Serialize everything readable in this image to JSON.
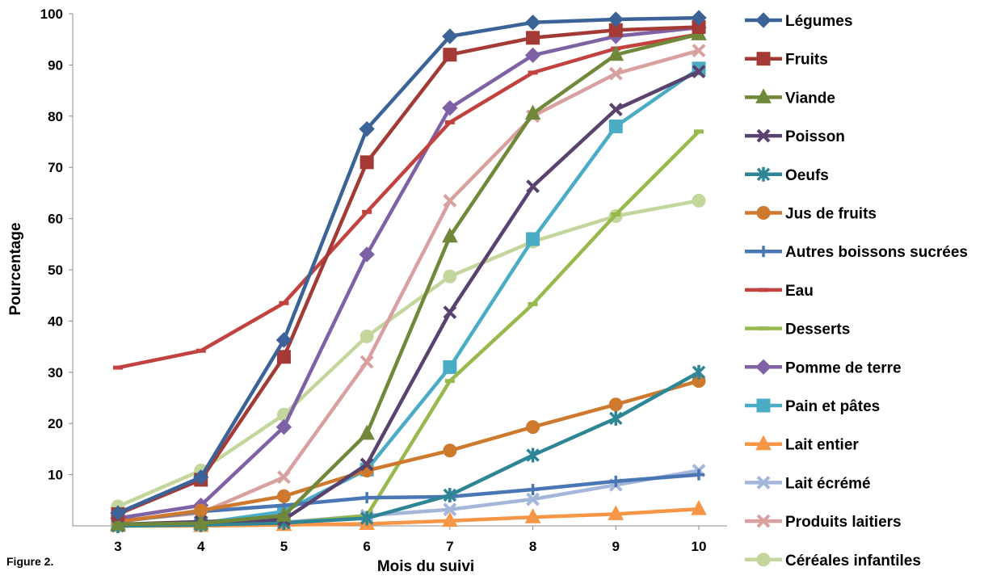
{
  "figure_label": "Figure 2.",
  "chart_data": {
    "type": "line",
    "xlabel": "Mois du suivi",
    "ylabel": "Pourcentage",
    "x": [
      3,
      4,
      5,
      6,
      7,
      8,
      9,
      10
    ],
    "ylim": [
      0,
      100
    ],
    "yticks": [
      10,
      20,
      30,
      40,
      50,
      60,
      70,
      80,
      90,
      100
    ],
    "grid": false,
    "legend_position": "right",
    "series": [
      {
        "name": "Légumes",
        "color": "#3B6398",
        "marker": "diamond",
        "values": [
          2.5,
          9.5,
          36.3,
          77.5,
          95.6,
          98.3,
          98.9,
          99.2
        ]
      },
      {
        "name": "Fruits",
        "color": "#A33A35",
        "marker": "square",
        "values": [
          2.3,
          9.0,
          33.0,
          71.0,
          92.0,
          95.3,
          96.8,
          97.4
        ]
      },
      {
        "name": "Viande",
        "color": "#70883A",
        "marker": "triangle",
        "values": [
          0.3,
          0.5,
          2.0,
          18.0,
          56.5,
          80.5,
          92.0,
          96.0
        ]
      },
      {
        "name": "Poisson",
        "color": "#5A426E",
        "marker": "x",
        "values": [
          0.3,
          0.8,
          1.2,
          12.0,
          41.7,
          66.3,
          81.3,
          88.7
        ]
      },
      {
        "name": "Oeufs",
        "color": "#2D8596",
        "marker": "star",
        "values": [
          0.0,
          0.2,
          0.6,
          1.5,
          6.0,
          13.8,
          21.0,
          30.0
        ]
      },
      {
        "name": "Jus de fruits",
        "color": "#CD7A2E",
        "marker": "circle",
        "values": [
          0.8,
          3.0,
          5.8,
          10.8,
          14.7,
          19.3,
          23.7,
          28.3
        ]
      },
      {
        "name": "Autres boissons sucrées",
        "color": "#4A77B4",
        "marker": "plus",
        "values": [
          0.8,
          2.8,
          4.0,
          5.5,
          5.7,
          7.1,
          8.7,
          10.0
        ]
      },
      {
        "name": "Eau",
        "color": "#C2423F",
        "marker": "dash",
        "values": [
          30.9,
          34.2,
          43.5,
          61.3,
          78.8,
          88.5,
          93.2,
          96.0
        ]
      },
      {
        "name": "Desserts",
        "color": "#98B94C",
        "marker": "dash",
        "values": [
          0.0,
          0.3,
          0.5,
          2.0,
          28.3,
          43.3,
          60.8,
          77.0
        ]
      },
      {
        "name": "Pomme de terre",
        "color": "#7F62A6",
        "marker": "diamond",
        "values": [
          1.5,
          4.0,
          19.3,
          53.0,
          81.6,
          91.9,
          95.6,
          97.3
        ]
      },
      {
        "name": "Pain et pâtes",
        "color": "#4BACC6",
        "marker": "square",
        "values": [
          0.3,
          0.5,
          2.8,
          11.0,
          31.0,
          56.0,
          78.0,
          89.3
        ]
      },
      {
        "name": "Lait entier",
        "color": "#F79646",
        "marker": "triangle",
        "values": [
          0.0,
          0.0,
          0.2,
          0.4,
          1.0,
          1.7,
          2.3,
          3.3
        ]
      },
      {
        "name": "Lait écrémé",
        "color": "#A4B6DA",
        "marker": "x",
        "values": [
          0.0,
          0.2,
          0.7,
          2.0,
          3.2,
          5.2,
          8.0,
          10.8
        ]
      },
      {
        "name": "Produits laitiers",
        "color": "#D8A09E",
        "marker": "x",
        "values": [
          1.0,
          2.5,
          9.5,
          32.0,
          63.5,
          80.0,
          88.3,
          92.8
        ]
      },
      {
        "name": "Céréales infantiles",
        "color": "#C3D69B",
        "marker": "circle",
        "values": [
          3.8,
          10.8,
          21.7,
          37.0,
          48.7,
          55.5,
          60.5,
          63.5
        ]
      }
    ]
  }
}
